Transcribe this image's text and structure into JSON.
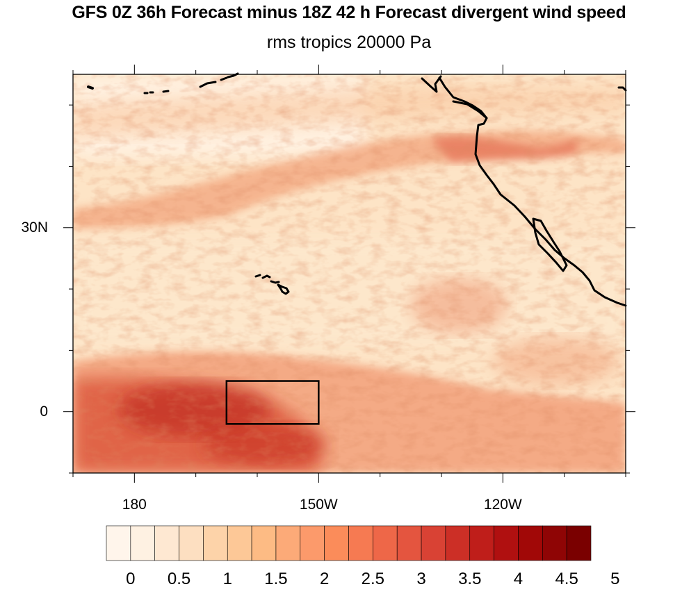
{
  "title": "GFS 0Z 36h Forecast minus 18Z 42 h Forecast divergent wind speed",
  "subtitle": "rms tropics 20000 Pa",
  "map": {
    "projection": "cylindrical equidistant",
    "lon_range": [
      -190,
      -100
    ],
    "lat_range": [
      -10,
      55
    ],
    "x_tick_labels": [
      {
        "label": "180",
        "lon": 180
      },
      {
        "label": "150W",
        "lon": -150
      },
      {
        "label": "120W",
        "lon": -120
      }
    ],
    "y_tick_labels": [
      {
        "label": "30N",
        "lat": 30
      },
      {
        "label": "0",
        "lat": 0
      }
    ],
    "highlight_box": {
      "lon_min": -165,
      "lon_max": -150,
      "lat_min": -2,
      "lat_max": 5
    },
    "features": [
      "hawaii-islands",
      "north-america-coastline",
      "baja-california",
      "aleutian-islands"
    ]
  },
  "colorbar": {
    "labels": [
      "0",
      "0.5",
      "1",
      "1.5",
      "2",
      "2.5",
      "3",
      "3.5",
      "4",
      "4.5",
      "5"
    ],
    "colors": [
      "#fff5eb",
      "#fef1e2",
      "#fee8d2",
      "#fddfc1",
      "#fdd3a9",
      "#fdc897",
      "#fdbb84",
      "#fcaa78",
      "#fc9a6b",
      "#fb8c5a",
      "#f67a52",
      "#ee6748",
      "#e4553f",
      "#d94234",
      "#cc2f26",
      "#bf1e1a",
      "#b01010",
      "#a10807",
      "#8f0505",
      "#7a0000"
    ]
  }
}
